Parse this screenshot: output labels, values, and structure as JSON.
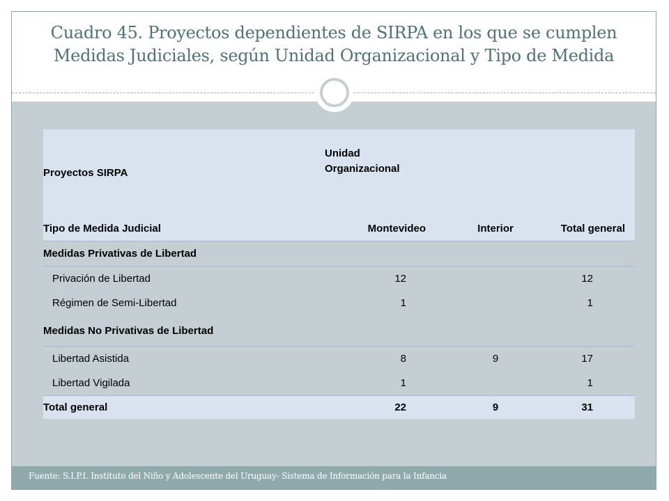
{
  "slide": {
    "title_line1": "Cuadro 45. Proyectos dependientes de SIRPA en los que se cumplen",
    "title_line2": "Medidas Judiciales, según Unidad Organizacional y Tipo de Medida",
    "footer": "Fuente: S.I.P.I. Instituto del Niño y Adolescente del Uruguay- Sistema de Información para la Infancia"
  },
  "table": {
    "header_top_left": "Proyectos SIRPA",
    "header_top_right_1": "Unidad",
    "header_top_right_2": "Organizacional",
    "columns": [
      "Tipo de Medida Judicial",
      "Montevideo",
      "Interior",
      "Total general"
    ],
    "sections": [
      {
        "label": "Medidas Privativas de Libertad",
        "rows": [
          {
            "label": "Privación de Libertad",
            "montevideo": "12",
            "interior": "",
            "total": "12"
          },
          {
            "label": "Régimen de Semi-Libertad",
            "montevideo": "1",
            "interior": "",
            "total": "1"
          }
        ]
      },
      {
        "label": "Medidas No Privativas de Libertad",
        "rows": [
          {
            "label": "Libertad Asistida",
            "montevideo": "8",
            "interior": "9",
            "total": "17"
          },
          {
            "label": "Libertad Vigilada",
            "montevideo": "1",
            "interior": "",
            "total": "1"
          }
        ]
      }
    ],
    "total": {
      "label": "Total general",
      "montevideo": "22",
      "interior": "9",
      "total": "31"
    }
  },
  "colors": {
    "title": "#4f7177",
    "content_bg": "#c4ced3",
    "footer_bg": "#90aaac",
    "table_header_bg": "#d9e3ef"
  }
}
